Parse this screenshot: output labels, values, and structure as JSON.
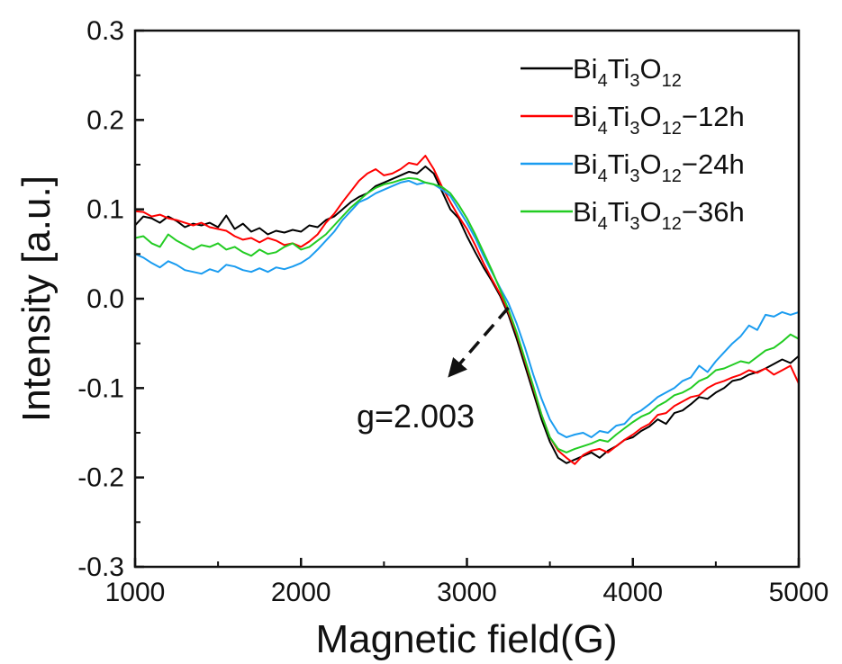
{
  "chart_data": {
    "type": "line",
    "xlabel": "Magnetic field(G)",
    "ylabel": "Intensity [a.u.]",
    "xlim": [
      1000,
      5000
    ],
    "ylim": [
      -0.3,
      0.3
    ],
    "x_ticks": [
      1000,
      2000,
      3000,
      4000,
      5000
    ],
    "x_tick_labels": [
      "1000",
      "2000",
      "3000",
      "4000",
      "5000"
    ],
    "y_ticks": [
      -0.3,
      -0.2,
      -0.1,
      0.0,
      0.1,
      0.2,
      0.3
    ],
    "y_tick_labels": [
      "-0.3",
      "-0.2",
      "-0.1",
      "0.0",
      "0.1",
      "0.2",
      "0.3"
    ],
    "grid": false,
    "legend_position": "top-right",
    "annotation": {
      "text": "g=2.003",
      "arrow_from": [
        3250,
        -0.01
      ],
      "arrow_to": [
        2900,
        -0.085
      ],
      "text_at": [
        2400,
        -0.13
      ]
    },
    "series": [
      {
        "name": "Bi4Ti3O12",
        "legend": {
          "base": "Bi",
          "s1": "4",
          "mid": "Ti",
          "s2": "3",
          "end": "O",
          "s3": "12",
          "suffix": ""
        },
        "color": "#000000",
        "x": [
          1000,
          1050,
          1100,
          1150,
          1200,
          1250,
          1300,
          1350,
          1400,
          1450,
          1500,
          1550,
          1600,
          1650,
          1700,
          1750,
          1800,
          1850,
          1900,
          1950,
          2000,
          2050,
          2100,
          2150,
          2200,
          2250,
          2300,
          2350,
          2400,
          2450,
          2500,
          2550,
          2600,
          2650,
          2700,
          2750,
          2800,
          2850,
          2900,
          2950,
          3000,
          3050,
          3100,
          3150,
          3200,
          3250,
          3300,
          3350,
          3400,
          3450,
          3500,
          3550,
          3600,
          3650,
          3700,
          3750,
          3800,
          3850,
          3900,
          3950,
          4000,
          4050,
          4100,
          4150,
          4200,
          4250,
          4300,
          4350,
          4400,
          4450,
          4500,
          4550,
          4600,
          4650,
          4700,
          4750,
          4800,
          4850,
          4900,
          4950,
          5000
        ],
        "y": [
          0.082,
          0.092,
          0.09,
          0.085,
          0.092,
          0.087,
          0.08,
          0.084,
          0.082,
          0.085,
          0.08,
          0.093,
          0.078,
          0.084,
          0.075,
          0.079,
          0.072,
          0.076,
          0.074,
          0.077,
          0.075,
          0.082,
          0.08,
          0.088,
          0.092,
          0.1,
          0.108,
          0.114,
          0.118,
          0.126,
          0.13,
          0.134,
          0.138,
          0.142,
          0.14,
          0.148,
          0.14,
          0.12,
          0.1,
          0.09,
          0.07,
          0.052,
          0.035,
          0.02,
          0.003,
          -0.018,
          -0.045,
          -0.075,
          -0.105,
          -0.135,
          -0.16,
          -0.178,
          -0.184,
          -0.18,
          -0.176,
          -0.172,
          -0.178,
          -0.17,
          -0.165,
          -0.158,
          -0.155,
          -0.148,
          -0.143,
          -0.135,
          -0.14,
          -0.128,
          -0.125,
          -0.118,
          -0.11,
          -0.112,
          -0.105,
          -0.1,
          -0.092,
          -0.09,
          -0.085,
          -0.082,
          -0.078,
          -0.073,
          -0.068,
          -0.072,
          -0.064
        ]
      },
      {
        "name": "Bi4Ti3O12-12h",
        "legend": {
          "base": "Bi",
          "s1": "4",
          "mid": "Ti",
          "s2": "3",
          "end": "O",
          "s3": "12",
          "suffix": "−12h"
        },
        "color": "#ff0000",
        "x": [
          1000,
          1050,
          1100,
          1150,
          1200,
          1250,
          1300,
          1350,
          1400,
          1450,
          1500,
          1550,
          1600,
          1650,
          1700,
          1750,
          1800,
          1850,
          1900,
          1950,
          2000,
          2050,
          2100,
          2150,
          2200,
          2250,
          2300,
          2350,
          2400,
          2450,
          2500,
          2550,
          2600,
          2650,
          2700,
          2750,
          2800,
          2850,
          2900,
          2950,
          3000,
          3050,
          3100,
          3150,
          3200,
          3250,
          3300,
          3350,
          3400,
          3450,
          3500,
          3550,
          3600,
          3650,
          3700,
          3750,
          3800,
          3850,
          3900,
          3950,
          4000,
          4050,
          4100,
          4150,
          4200,
          4250,
          4300,
          4350,
          4400,
          4450,
          4500,
          4550,
          4600,
          4650,
          4700,
          4750,
          4800,
          4850,
          4900,
          4950,
          5000
        ],
        "y": [
          0.098,
          0.097,
          0.092,
          0.094,
          0.09,
          0.088,
          0.085,
          0.082,
          0.085,
          0.08,
          0.078,
          0.076,
          0.07,
          0.066,
          0.068,
          0.063,
          0.068,
          0.065,
          0.06,
          0.062,
          0.058,
          0.064,
          0.072,
          0.085,
          0.095,
          0.108,
          0.12,
          0.132,
          0.14,
          0.145,
          0.138,
          0.14,
          0.145,
          0.152,
          0.15,
          0.16,
          0.145,
          0.125,
          0.108,
          0.092,
          0.078,
          0.06,
          0.04,
          0.022,
          0.005,
          -0.015,
          -0.04,
          -0.07,
          -0.1,
          -0.13,
          -0.155,
          -0.17,
          -0.178,
          -0.185,
          -0.175,
          -0.17,
          -0.168,
          -0.172,
          -0.165,
          -0.158,
          -0.152,
          -0.145,
          -0.14,
          -0.13,
          -0.128,
          -0.12,
          -0.115,
          -0.11,
          -0.108,
          -0.1,
          -0.095,
          -0.092,
          -0.088,
          -0.085,
          -0.08,
          -0.083,
          -0.078,
          -0.085,
          -0.08,
          -0.075,
          -0.095
        ]
      },
      {
        "name": "Bi4Ti3O12-24h",
        "legend": {
          "base": "Bi",
          "s1": "4",
          "mid": "Ti",
          "s2": "3",
          "end": "O",
          "s3": "12",
          "suffix": "−24h"
        },
        "color": "#1a9cf0",
        "x": [
          1000,
          1050,
          1100,
          1150,
          1200,
          1250,
          1300,
          1350,
          1400,
          1450,
          1500,
          1550,
          1600,
          1650,
          1700,
          1750,
          1800,
          1850,
          1900,
          1950,
          2000,
          2050,
          2100,
          2150,
          2200,
          2250,
          2300,
          2350,
          2400,
          2450,
          2500,
          2550,
          2600,
          2650,
          2700,
          2750,
          2800,
          2850,
          2900,
          2950,
          3000,
          3050,
          3100,
          3150,
          3200,
          3250,
          3300,
          3350,
          3400,
          3450,
          3500,
          3550,
          3600,
          3650,
          3700,
          3750,
          3800,
          3850,
          3900,
          3950,
          4000,
          4050,
          4100,
          4150,
          4200,
          4250,
          4300,
          4350,
          4400,
          4450,
          4500,
          4550,
          4600,
          4650,
          4700,
          4750,
          4800,
          4850,
          4900,
          4950,
          5000
        ],
        "y": [
          0.05,
          0.046,
          0.04,
          0.035,
          0.042,
          0.038,
          0.032,
          0.03,
          0.028,
          0.033,
          0.03,
          0.038,
          0.036,
          0.032,
          0.03,
          0.034,
          0.03,
          0.035,
          0.033,
          0.036,
          0.04,
          0.046,
          0.055,
          0.065,
          0.075,
          0.088,
          0.098,
          0.108,
          0.112,
          0.118,
          0.122,
          0.126,
          0.13,
          0.132,
          0.128,
          0.13,
          0.128,
          0.122,
          0.115,
          0.1,
          0.085,
          0.068,
          0.048,
          0.03,
          0.012,
          -0.005,
          -0.028,
          -0.055,
          -0.085,
          -0.112,
          -0.135,
          -0.15,
          -0.155,
          -0.152,
          -0.15,
          -0.155,
          -0.148,
          -0.15,
          -0.142,
          -0.14,
          -0.13,
          -0.125,
          -0.118,
          -0.11,
          -0.105,
          -0.1,
          -0.092,
          -0.088,
          -0.075,
          -0.082,
          -0.07,
          -0.06,
          -0.05,
          -0.042,
          -0.03,
          -0.035,
          -0.018,
          -0.02,
          -0.015,
          -0.018,
          -0.015
        ]
      },
      {
        "name": "Bi4Ti3O12-36h",
        "legend": {
          "base": "Bi",
          "s1": "4",
          "mid": "Ti",
          "s2": "3",
          "end": "O",
          "s3": "12",
          "suffix": "−36h"
        },
        "color": "#22cc22",
        "x": [
          1000,
          1050,
          1100,
          1150,
          1200,
          1250,
          1300,
          1350,
          1400,
          1450,
          1500,
          1550,
          1600,
          1650,
          1700,
          1750,
          1800,
          1850,
          1900,
          1950,
          2000,
          2050,
          2100,
          2150,
          2200,
          2250,
          2300,
          2350,
          2400,
          2450,
          2500,
          2550,
          2600,
          2650,
          2700,
          2750,
          2800,
          2850,
          2900,
          2950,
          3000,
          3050,
          3100,
          3150,
          3200,
          3250,
          3300,
          3350,
          3400,
          3450,
          3500,
          3550,
          3600,
          3650,
          3700,
          3750,
          3800,
          3850,
          3900,
          3950,
          4000,
          4050,
          4100,
          4150,
          4200,
          4250,
          4300,
          4350,
          4400,
          4450,
          4500,
          4550,
          4600,
          4650,
          4700,
          4750,
          4800,
          4850,
          4900,
          4950,
          5000
        ],
        "y": [
          0.068,
          0.07,
          0.062,
          0.058,
          0.072,
          0.065,
          0.06,
          0.055,
          0.06,
          0.058,
          0.062,
          0.055,
          0.058,
          0.052,
          0.048,
          0.055,
          0.05,
          0.052,
          0.058,
          0.062,
          0.055,
          0.058,
          0.065,
          0.072,
          0.082,
          0.092,
          0.102,
          0.11,
          0.118,
          0.124,
          0.128,
          0.13,
          0.133,
          0.135,
          0.134,
          0.13,
          0.128,
          0.125,
          0.118,
          0.105,
          0.09,
          0.072,
          0.052,
          0.032,
          0.01,
          -0.012,
          -0.038,
          -0.068,
          -0.098,
          -0.13,
          -0.155,
          -0.168,
          -0.172,
          -0.168,
          -0.165,
          -0.162,
          -0.158,
          -0.16,
          -0.152,
          -0.145,
          -0.138,
          -0.132,
          -0.128,
          -0.12,
          -0.115,
          -0.108,
          -0.105,
          -0.1,
          -0.092,
          -0.088,
          -0.08,
          -0.078,
          -0.074,
          -0.07,
          -0.072,
          -0.065,
          -0.058,
          -0.055,
          -0.048,
          -0.04,
          -0.045
        ]
      }
    ]
  }
}
